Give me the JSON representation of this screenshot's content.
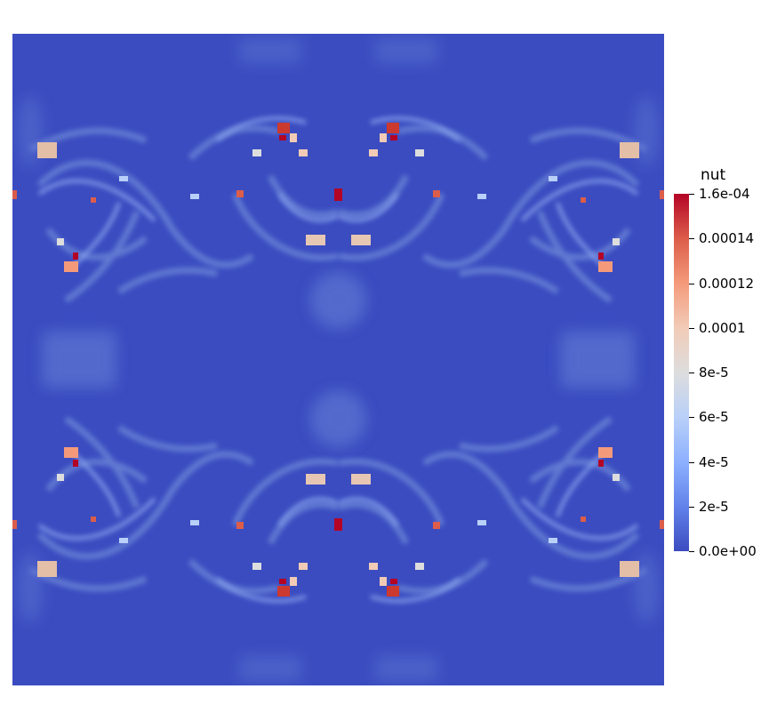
{
  "legend": {
    "title": "nut",
    "ticks": [
      "1.6e-04",
      "0.00014",
      "0.00012",
      "0.0001",
      "8e-5",
      "6e-5",
      "4e-5",
      "2e-5",
      "0.0e+00"
    ],
    "colormap": [
      "#b40426",
      "#dc5d4a",
      "#f49a7b",
      "#f2cbb7",
      "#dddddd",
      "#b9d0f9",
      "#8db0fe",
      "#6282ea",
      "#3b4cc0"
    ]
  },
  "field": {
    "background_color": "#3b4cc0",
    "symmetry": "four-fold mirror"
  }
}
